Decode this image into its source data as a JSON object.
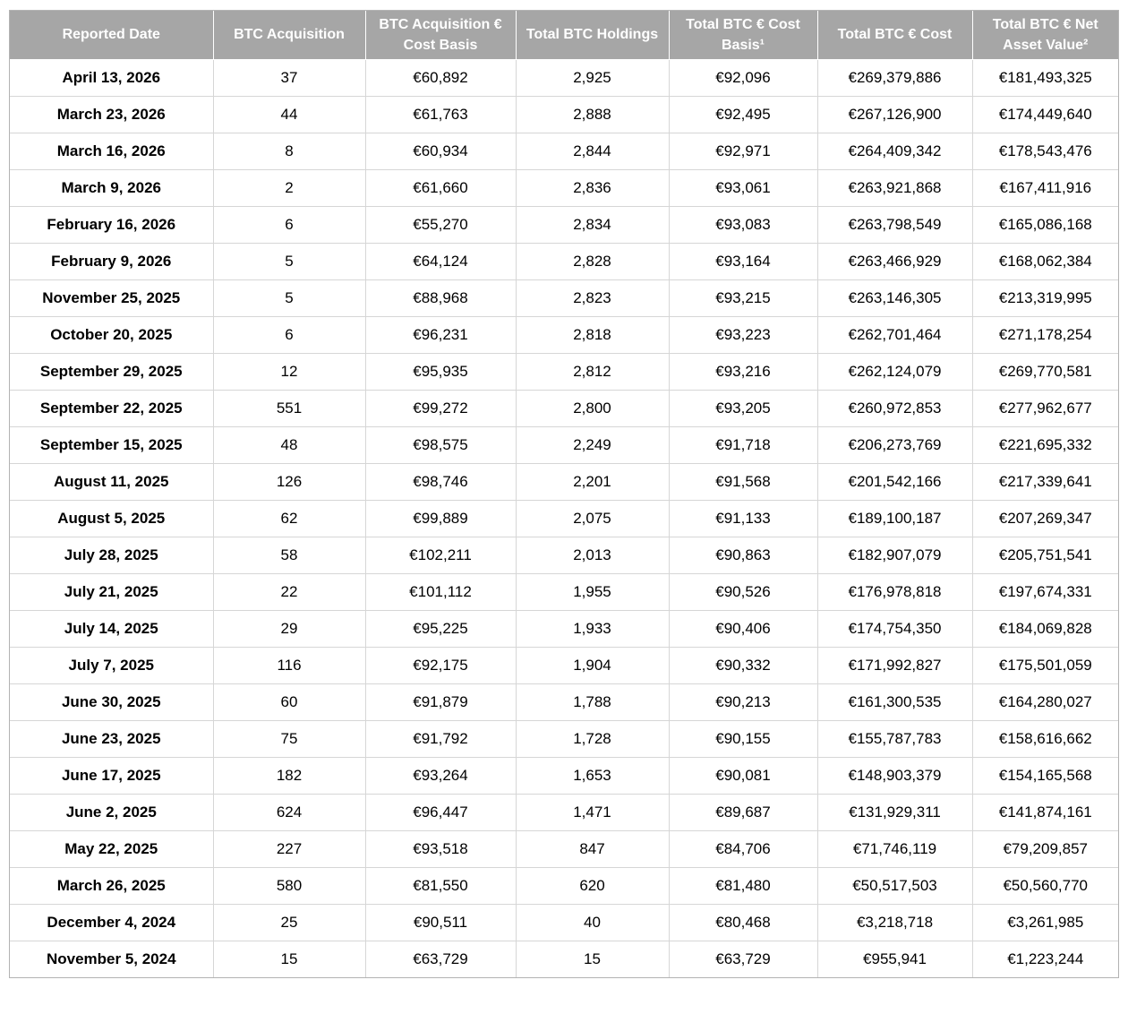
{
  "colors": {
    "header_background": "#a6a6a6",
    "header_text": "#ffffff",
    "body_grid_line": "#d6d6d6",
    "outer_border": "#b3b3b3",
    "body_text": "#000000"
  },
  "table": {
    "columns": [
      "Reported Date",
      "BTC Acquisition",
      "BTC Acquisition € Cost Basis",
      "Total BTC Holdings",
      "Total BTC € Cost Basis¹",
      "Total BTC € Cost",
      "Total BTC € Net Asset Value²"
    ],
    "rows": [
      [
        "April 13, 2026",
        "37",
        "€60,892",
        "2,925",
        "€92,096",
        "€269,379,886",
        "€181,493,325"
      ],
      [
        "March 23, 2026",
        "44",
        "€61,763",
        "2,888",
        "€92,495",
        "€267,126,900",
        "€174,449,640"
      ],
      [
        "March 16, 2026",
        "8",
        "€60,934",
        "2,844",
        "€92,971",
        "€264,409,342",
        "€178,543,476"
      ],
      [
        "March 9, 2026",
        "2",
        "€61,660",
        "2,836",
        "€93,061",
        "€263,921,868",
        "€167,411,916"
      ],
      [
        "February 16, 2026",
        "6",
        "€55,270",
        "2,834",
        "€93,083",
        "€263,798,549",
        "€165,086,168"
      ],
      [
        "February 9, 2026",
        "5",
        "€64,124",
        "2,828",
        "€93,164",
        "€263,466,929",
        "€168,062,384"
      ],
      [
        "November 25, 2025",
        "5",
        "€88,968",
        "2,823",
        "€93,215",
        "€263,146,305",
        "€213,319,995"
      ],
      [
        "October 20, 2025",
        "6",
        "€96,231",
        "2,818",
        "€93,223",
        "€262,701,464",
        "€271,178,254"
      ],
      [
        "September 29, 2025",
        "12",
        "€95,935",
        "2,812",
        "€93,216",
        "€262,124,079",
        "€269,770,581"
      ],
      [
        "September 22, 2025",
        "551",
        "€99,272",
        "2,800",
        "€93,205",
        "€260,972,853",
        "€277,962,677"
      ],
      [
        "September 15, 2025",
        "48",
        "€98,575",
        "2,249",
        "€91,718",
        "€206,273,769",
        "€221,695,332"
      ],
      [
        "August 11, 2025",
        "126",
        "€98,746",
        "2,201",
        "€91,568",
        "€201,542,166",
        "€217,339,641"
      ],
      [
        "August 5, 2025",
        "62",
        "€99,889",
        "2,075",
        "€91,133",
        "€189,100,187",
        "€207,269,347"
      ],
      [
        "July 28, 2025",
        "58",
        "€102,211",
        "2,013",
        "€90,863",
        "€182,907,079",
        "€205,751,541"
      ],
      [
        "July 21, 2025",
        "22",
        "€101,112",
        "1,955",
        "€90,526",
        "€176,978,818",
        "€197,674,331"
      ],
      [
        "July 14, 2025",
        "29",
        "€95,225",
        "1,933",
        "€90,406",
        "€174,754,350",
        "€184,069,828"
      ],
      [
        "July 7, 2025",
        "116",
        "€92,175",
        "1,904",
        "€90,332",
        "€171,992,827",
        "€175,501,059"
      ],
      [
        "June 30, 2025",
        "60",
        "€91,879",
        "1,788",
        "€90,213",
        "€161,300,535",
        "€164,280,027"
      ],
      [
        "June 23, 2025",
        "75",
        "€91,792",
        "1,728",
        "€90,155",
        "€155,787,783",
        "€158,616,662"
      ],
      [
        "June 17, 2025",
        "182",
        "€93,264",
        "1,653",
        "€90,081",
        "€148,903,379",
        "€154,165,568"
      ],
      [
        "June 2, 2025",
        "624",
        "€96,447",
        "1,471",
        "€89,687",
        "€131,929,311",
        "€141,874,161"
      ],
      [
        "May 22, 2025",
        "227",
        "€93,518",
        "847",
        "€84,706",
        "€71,746,119",
        "€79,209,857"
      ],
      [
        "March 26, 2025",
        "580",
        "€81,550",
        "620",
        "€81,480",
        "€50,517,503",
        "€50,560,770"
      ],
      [
        "December 4, 2024",
        "25",
        "€90,511",
        "40",
        "€80,468",
        "€3,218,718",
        "€3,261,985"
      ],
      [
        "November 5, 2024",
        "15",
        "€63,729",
        "15",
        "€63,729",
        "€955,941",
        "€1,223,244"
      ]
    ]
  }
}
